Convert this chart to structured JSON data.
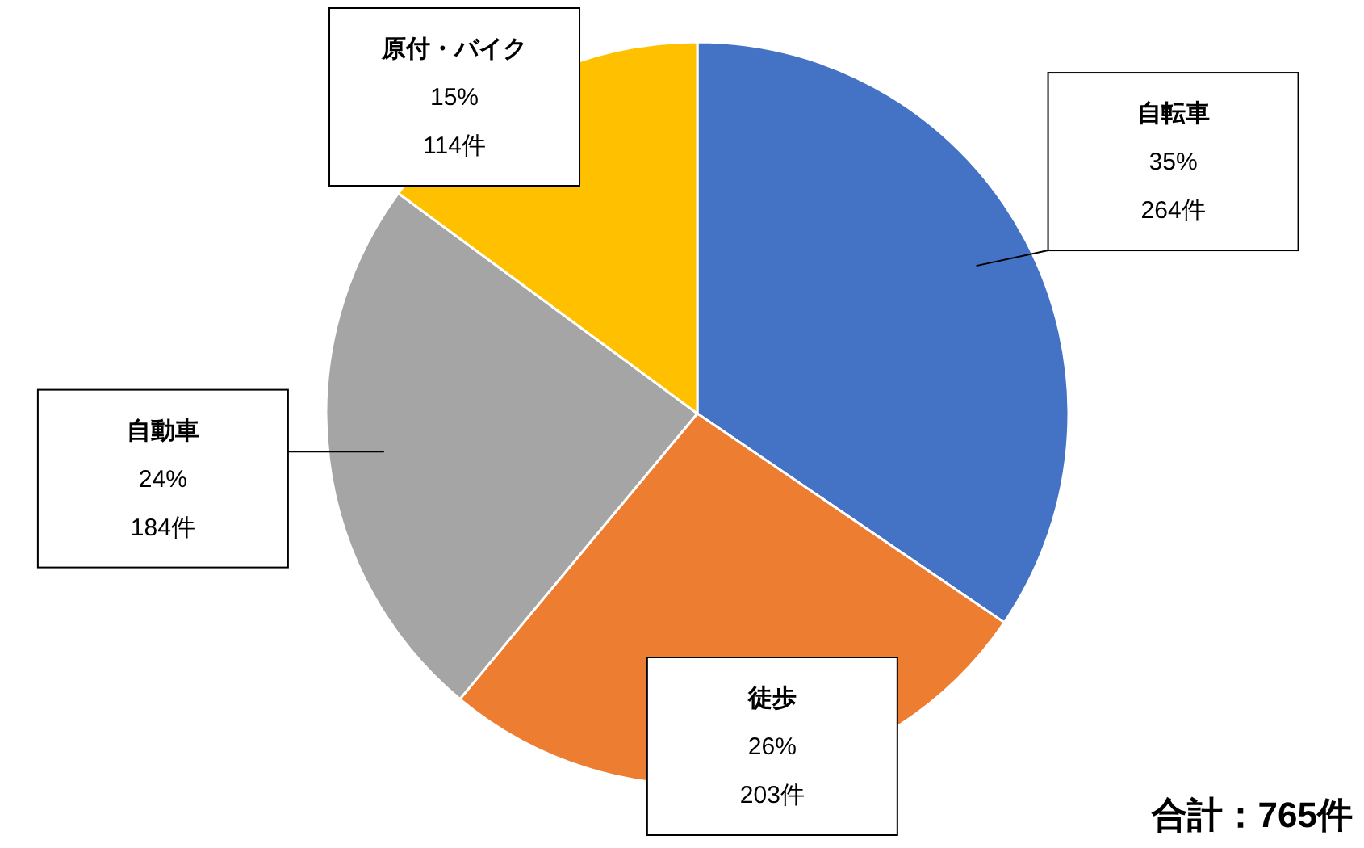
{
  "chart_data": {
    "type": "pie",
    "categories": [
      "自転車",
      "徒歩",
      "自動車",
      "原付・バイク"
    ],
    "values": [
      264,
      203,
      184,
      114
    ],
    "colors": [
      "#4472c4",
      "#ed7d31",
      "#a5a5a5",
      "#ffc000"
    ],
    "value_labels": [
      "35%\n264件",
      "26%\n203件",
      "24%\n184件",
      "15%\n114件"
    ],
    "annotations": [
      "合計：765件"
    ]
  }
}
